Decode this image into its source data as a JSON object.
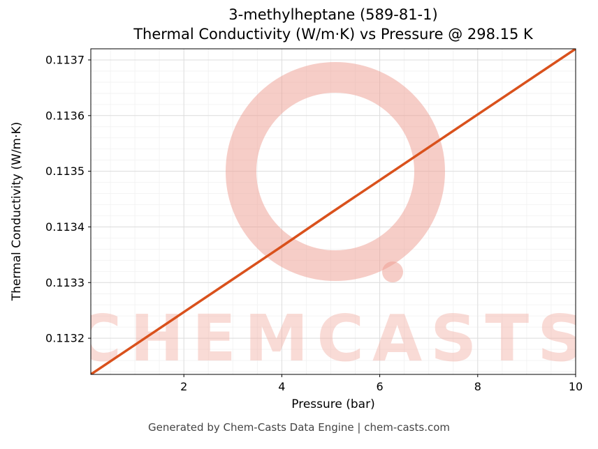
{
  "chart_data": {
    "type": "line",
    "title": "3-methylheptane (589-81-1)",
    "subtitle": "Thermal Conductivity (W/m·K) vs Pressure @ 298.15 K",
    "xlabel": "Pressure (bar)",
    "ylabel": "Thermal Conductivity (W/m·K)",
    "xlim": [
      0.1,
      10
    ],
    "ylim": [
      0.113135,
      0.11372
    ],
    "x_ticks": [
      2,
      4,
      6,
      8,
      10
    ],
    "x_tick_labels": [
      "2",
      "4",
      "6",
      "8",
      "10"
    ],
    "y_ticks": [
      0.1132,
      0.1133,
      0.1134,
      0.1135,
      0.1136,
      0.1137
    ],
    "y_tick_labels": [
      "0.1132",
      "0.1133",
      "0.1134",
      "0.1135",
      "0.1136",
      "0.1137"
    ],
    "grid": true,
    "legend": false,
    "series": [
      {
        "name": "thermal-conductivity-vs-pressure",
        "color": "#d9511c",
        "x": [
          0.1,
          1,
          2,
          3,
          4,
          5,
          6,
          7,
          8,
          9,
          10
        ],
        "y": [
          0.113135,
          0.113188,
          0.113247,
          0.113306,
          0.113365,
          0.113425,
          0.113484,
          0.113543,
          0.113602,
          0.113661,
          0.11372
        ]
      }
    ]
  },
  "watermark": {
    "text": "CHEMCASTS",
    "color": "#f2b0a6"
  },
  "footer": {
    "text": "Generated by Chem-Casts Data Engine | chem-casts.com"
  }
}
